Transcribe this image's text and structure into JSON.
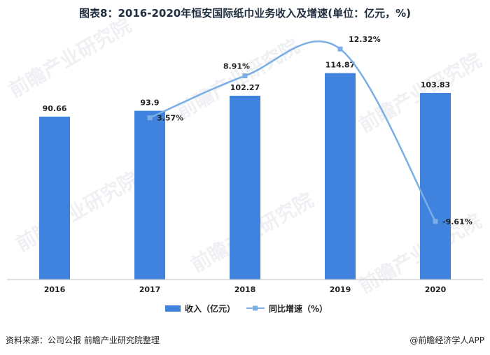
{
  "chart_data": {
    "type": "bar",
    "title": "图表8：2016-2020年恒安国际纸巾业务收入及增速(单位：亿元，%)",
    "categories": [
      "2016",
      "2017",
      "2018",
      "2019",
      "2020"
    ],
    "series": [
      {
        "name": "收入（亿元）",
        "type": "bar",
        "axis": "left",
        "color": "#3f83df",
        "values": [
          90.66,
          93.9,
          102.27,
          114.87,
          103.83
        ]
      },
      {
        "name": "同比增速（%）",
        "type": "line",
        "axis": "right",
        "color": "#7aaee5",
        "values": [
          null,
          3.57,
          8.91,
          12.32,
          -9.61
        ]
      }
    ],
    "left_axis": {
      "ylim": [
        0,
        140
      ],
      "visible": false
    },
    "right_axis": {
      "ylim": [
        -17,
        15
      ],
      "visible": false
    },
    "grid": false,
    "legend_position": "bottom"
  },
  "labels": {
    "bar_values": [
      "90.66",
      "93.9",
      "102.27",
      "114.87",
      "103.83"
    ],
    "line_values": [
      "",
      "3.57%",
      "8.91%",
      "12.32%",
      "-9.61%"
    ]
  },
  "footer": {
    "source": "资料来源：公司公报 前瞻产业研究院整理",
    "brand": "@前瞻经济学人APP"
  }
}
